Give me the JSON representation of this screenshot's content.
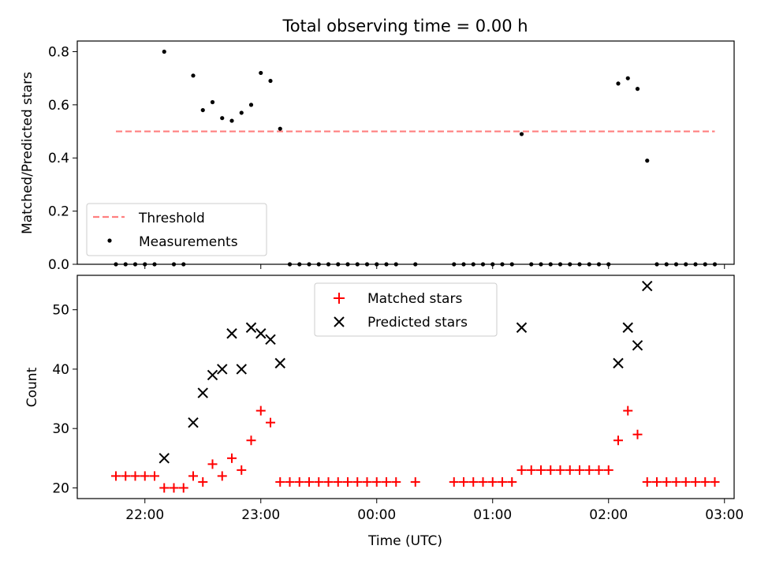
{
  "figure": {
    "title": "Total observing time = 0.00 h",
    "xlabel": "Time (UTC)"
  },
  "chart_data": [
    {
      "type": "scatter",
      "ylabel": "Matched/Predicted stars",
      "x_tick_labels": [
        "22:00",
        "23:00",
        "00:00",
        "01:00",
        "02:00",
        "03:00"
      ],
      "x_ticks": [
        "22:00",
        "23:00",
        "00:00",
        "01:00",
        "02:00",
        "03:00"
      ],
      "y_tick_labels": [
        "0.0",
        "0.2",
        "0.4",
        "0.6",
        "0.8"
      ],
      "y_ticks": [
        0.0,
        0.2,
        0.4,
        0.6,
        0.8
      ],
      "xlim": [
        "21:25",
        "03:05"
      ],
      "ylim": [
        0,
        0.84
      ],
      "legend_position": "lower-left",
      "threshold": {
        "name": "Threshold",
        "value": 0.5,
        "x_start": "21:45",
        "x_end": "02:55",
        "color": "#ff7f7f",
        "style": "dashed"
      },
      "series": [
        {
          "name": "Measurements",
          "color": "#000000",
          "x": [
            "21:45",
            "21:50",
            "21:55",
            "22:00",
            "22:05",
            "22:10",
            "22:15",
            "22:20",
            "22:25",
            "22:30",
            "22:35",
            "22:40",
            "22:45",
            "22:50",
            "22:55",
            "23:00",
            "23:05",
            "23:10",
            "23:15",
            "23:20",
            "23:25",
            "23:30",
            "23:35",
            "23:40",
            "23:45",
            "23:50",
            "23:55",
            "00:00",
            "00:05",
            "00:10",
            "00:20",
            "00:40",
            "00:45",
            "00:50",
            "00:55",
            "01:00",
            "01:05",
            "01:10",
            "01:15",
            "01:20",
            "01:25",
            "01:30",
            "01:35",
            "01:40",
            "01:45",
            "01:50",
            "01:55",
            "02:00",
            "02:05",
            "02:10",
            "02:15",
            "02:20",
            "02:25",
            "02:30",
            "02:35",
            "02:40",
            "02:45",
            "02:50",
            "02:55"
          ],
          "y": [
            0,
            0,
            0,
            0,
            0,
            0.8,
            0,
            0,
            0.71,
            0.58,
            0.61,
            0.55,
            0.54,
            0.57,
            0.6,
            0.72,
            0.69,
            0.51,
            0,
            0,
            0,
            0,
            0,
            0,
            0,
            0,
            0,
            0,
            0,
            0,
            0,
            0,
            0,
            0,
            0,
            0,
            0,
            0,
            0.49,
            0,
            0,
            0,
            0,
            0,
            0,
            0,
            0,
            0,
            0.68,
            0.7,
            0.66,
            0.39,
            0,
            0,
            0,
            0,
            0,
            0,
            0
          ]
        }
      ]
    },
    {
      "type": "scatter",
      "ylabel": "Count",
      "x_tick_labels": [
        "22:00",
        "23:00",
        "00:00",
        "01:00",
        "02:00",
        "03:00"
      ],
      "x_ticks": [
        "22:00",
        "23:00",
        "00:00",
        "01:00",
        "02:00",
        "03:00"
      ],
      "y_tick_labels": [
        "20",
        "30",
        "40",
        "50"
      ],
      "y_ticks": [
        20,
        30,
        40,
        50
      ],
      "xlim": [
        "21:25",
        "03:05"
      ],
      "ylim": [
        18.2,
        55.8
      ],
      "legend_position": "upper-center",
      "series": [
        {
          "name": "Matched stars",
          "marker": "plus",
          "color": "#ff0000",
          "x": [
            "21:45",
            "21:50",
            "21:55",
            "22:00",
            "22:05",
            "22:10",
            "22:15",
            "22:20",
            "22:25",
            "22:30",
            "22:35",
            "22:40",
            "22:45",
            "22:50",
            "22:55",
            "23:00",
            "23:05",
            "23:10",
            "23:15",
            "23:20",
            "23:25",
            "23:30",
            "23:35",
            "23:40",
            "23:45",
            "23:50",
            "23:55",
            "00:00",
            "00:05",
            "00:10",
            "00:20",
            "00:40",
            "00:45",
            "00:50",
            "00:55",
            "01:00",
            "01:05",
            "01:10",
            "01:15",
            "01:20",
            "01:25",
            "01:30",
            "01:35",
            "01:40",
            "01:45",
            "01:50",
            "01:55",
            "02:00",
            "02:05",
            "02:10",
            "02:15",
            "02:20",
            "02:25",
            "02:30",
            "02:35",
            "02:40",
            "02:45",
            "02:50",
            "02:55"
          ],
          "y": [
            22,
            22,
            22,
            22,
            22,
            20,
            20,
            20,
            22,
            21,
            24,
            22,
            25,
            23,
            28,
            33,
            31,
            21,
            21,
            21,
            21,
            21,
            21,
            21,
            21,
            21,
            21,
            21,
            21,
            21,
            21,
            21,
            21,
            21,
            21,
            21,
            21,
            21,
            23,
            23,
            23,
            23,
            23,
            23,
            23,
            23,
            23,
            23,
            28,
            33,
            29,
            21,
            21,
            21,
            21,
            21,
            21,
            21,
            21
          ]
        },
        {
          "name": "Predicted stars",
          "marker": "x",
          "color": "#000000",
          "x": [
            "22:10",
            "22:25",
            "22:30",
            "22:35",
            "22:40",
            "22:45",
            "22:50",
            "22:55",
            "23:00",
            "23:05",
            "23:10",
            "01:15",
            "02:05",
            "02:10",
            "02:15",
            "02:20"
          ],
          "y": [
            25,
            31,
            36,
            39,
            40,
            46,
            40,
            47,
            46,
            45,
            41,
            47,
            41,
            47,
            44,
            54
          ]
        }
      ]
    }
  ]
}
